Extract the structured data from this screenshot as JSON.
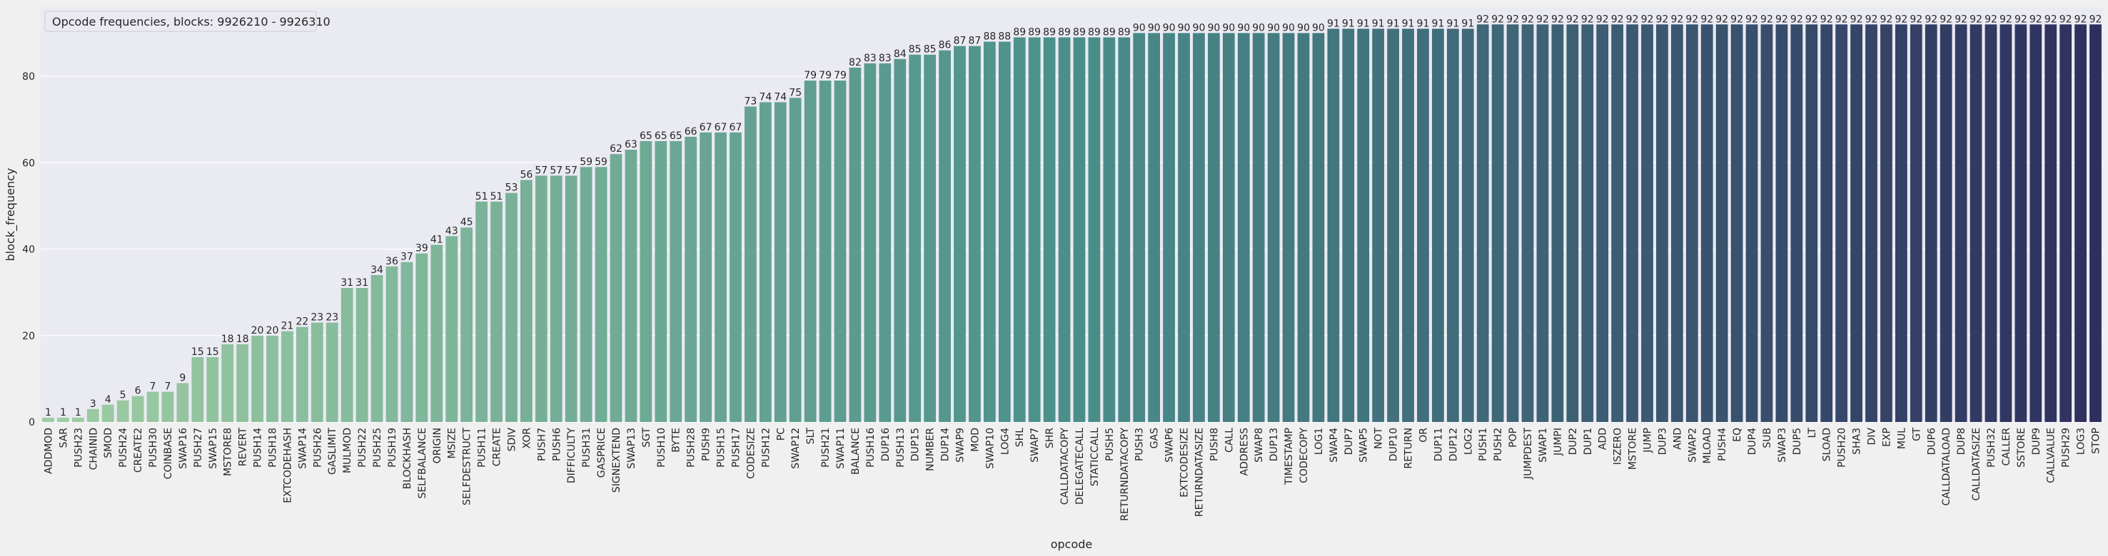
{
  "chart_data": {
    "type": "bar",
    "title": "Opcode frequencies, blocks: 9926210 - 9926310",
    "xlabel": "opcode",
    "ylabel": "block_frequency",
    "ylim": [
      0,
      96
    ],
    "yticks": [
      0,
      20,
      40,
      60,
      80
    ],
    "grid": true,
    "legend_position": "top-left",
    "palette": {
      "start": "#9fcda3",
      "mid": "#4a8f8a",
      "end": "#2f2f5e"
    },
    "background": "#eaeaf2",
    "figure_background": "#f0f0f0",
    "categories": [
      "ADDMOD",
      "SAR",
      "PUSH23",
      "CHAINID",
      "SMOD",
      "PUSH24",
      "CREATE2",
      "PUSH30",
      "COINBASE",
      "SWAP16",
      "PUSH27",
      "SWAP15",
      "MSTORE8",
      "REVERT",
      "PUSH14",
      "PUSH18",
      "EXTCODEHASH",
      "SWAP14",
      "PUSH26",
      "GASLIMIT",
      "MULMOD",
      "PUSH22",
      "PUSH25",
      "PUSH19",
      "BLOCKHASH",
      "SELFBALANCE",
      "ORIGIN",
      "MSIZE",
      "SELFDESTRUCT",
      "PUSH11",
      "CREATE",
      "SDIV",
      "XOR",
      "PUSH7",
      "PUSH6",
      "DIFFICULTY",
      "PUSH31",
      "GASPRICE",
      "SIGNEXTEND",
      "SWAP13",
      "SGT",
      "PUSH10",
      "BYTE",
      "PUSH28",
      "PUSH9",
      "PUSH15",
      "PUSH17",
      "CODESIZE",
      "PUSH12",
      "PC",
      "SWAP12",
      "SLT",
      "PUSH21",
      "SWAP11",
      "BALANCE",
      "PUSH16",
      "DUP16",
      "PUSH13",
      "DUP15",
      "NUMBER",
      "DUP14",
      "SWAP9",
      "MOD",
      "SWAP10",
      "LOG4",
      "SHL",
      "SWAP7",
      "SHR",
      "CALLDATACOPY",
      "DELEGATECALL",
      "STATICCALL",
      "PUSH5",
      "RETURNDATACOPY",
      "PUSH3",
      "GAS",
      "SWAP6",
      "EXTCODESIZE",
      "RETURNDATASIZE",
      "PUSH8",
      "CALL",
      "ADDRESS",
      "SWAP8",
      "DUP13",
      "TIMESTAMP",
      "CODECOPY",
      "LOG1",
      "SWAP4",
      "DUP7",
      "SWAP5",
      "NOT",
      "DUP10",
      "RETURN",
      "OR",
      "DUP11",
      "DUP12",
      "LOG2",
      "PUSH1",
      "PUSH2",
      "POP",
      "JUMPDEST",
      "SWAP1",
      "JUMPI",
      "DUP2",
      "DUP1",
      "ADD",
      "ISZERO",
      "MSTORE",
      "JUMP",
      "DUP3",
      "AND",
      "SWAP2",
      "MLOAD",
      "PUSH4",
      "EQ",
      "DUP4",
      "SUB",
      "SWAP3",
      "DUP5",
      "LT",
      "SLOAD",
      "PUSH20",
      "SHA3",
      "DIV",
      "EXP",
      "MUL",
      "GT",
      "DUP6",
      "CALLDATALOAD",
      "DUP8",
      "CALLDATASIZE",
      "PUSH32",
      "CALLER",
      "SSTORE",
      "DUP9",
      "CALLVALUE",
      "PUSH29",
      "LOG3",
      "STOP"
    ],
    "values": [
      1,
      1,
      1,
      3,
      4,
      5,
      6,
      7,
      7,
      9,
      15,
      15,
      18,
      18,
      20,
      20,
      21,
      22,
      23,
      23,
      31,
      31,
      34,
      36,
      37,
      39,
      41,
      43,
      45,
      51,
      51,
      53,
      56,
      57,
      57,
      57,
      59,
      59,
      62,
      63,
      65,
      65,
      65,
      66,
      67,
      67,
      67,
      73,
      74,
      74,
      75,
      79,
      79,
      79,
      82,
      83,
      83,
      84,
      85,
      85,
      86,
      87,
      87,
      88,
      88,
      89,
      89,
      89,
      89,
      89,
      89,
      89,
      89,
      90,
      90,
      90,
      90,
      90,
      90,
      90,
      90,
      90,
      90,
      90,
      90,
      90,
      91,
      91,
      91,
      91,
      91,
      91,
      91,
      91,
      91,
      91,
      92,
      92,
      92,
      92,
      92,
      92,
      92,
      92,
      92,
      92,
      92,
      92,
      92,
      92,
      92,
      92,
      92,
      92,
      92,
      92,
      92,
      92,
      92,
      92,
      92,
      92,
      92,
      92,
      92,
      92,
      92,
      92,
      92,
      92,
      92,
      92,
      92,
      92,
      92,
      92,
      92,
      92
    ]
  }
}
